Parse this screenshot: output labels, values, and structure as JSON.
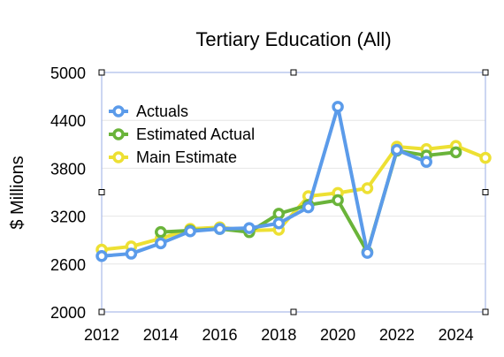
{
  "chart_data": {
    "type": "line",
    "title": "Tertiary Education (All)",
    "ylabel": "$ Millions",
    "xlabel": "",
    "xlim": [
      2012,
      2025
    ],
    "ylim": [
      2000,
      5000
    ],
    "x_ticks": [
      2012,
      2014,
      2016,
      2018,
      2020,
      2022,
      2024
    ],
    "y_ticks": [
      2000,
      2600,
      3200,
      3800,
      4400,
      5000
    ],
    "grid": true,
    "legend_position": "top-left",
    "series": [
      {
        "name": "Actuals",
        "color": "#5b9bea",
        "x": [
          2012,
          2013,
          2014,
          2015,
          2016,
          2017,
          2018,
          2019,
          2020,
          2021,
          2022,
          2023
        ],
        "values": [
          2700,
          2730,
          2860,
          3010,
          3040,
          3050,
          3110,
          3310,
          4570,
          2740,
          4030,
          3880
        ]
      },
      {
        "name": "Estimated Actual",
        "color": "#6ab43a",
        "x": [
          2014,
          2015,
          2016,
          2017,
          2018,
          2019,
          2020,
          2021,
          2022,
          2023,
          2024
        ],
        "values": [
          3000,
          3020,
          3040,
          3000,
          3230,
          3340,
          3400,
          2750,
          4020,
          3960,
          4000
        ]
      },
      {
        "name": "Main Estimate",
        "color": "#ede033",
        "x": [
          2012,
          2013,
          2014,
          2015,
          2016,
          2017,
          2018,
          2019,
          2020,
          2021,
          2022,
          2023,
          2024,
          2025
        ],
        "values": [
          2780,
          2820,
          2920,
          3040,
          3060,
          3020,
          3030,
          3450,
          3490,
          3550,
          4070,
          4040,
          4080,
          3930
        ]
      }
    ]
  }
}
